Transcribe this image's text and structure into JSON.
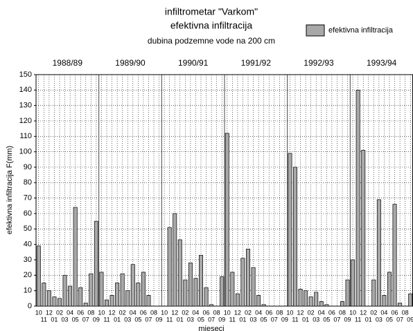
{
  "chart_data": {
    "type": "bar",
    "title": "infiltrometar \"Varkom\"",
    "subtitle": "efektivna infiltracija",
    "note": "dubina podzemne vode na 200 cm",
    "ylabel": "efektivna infiltracija  F(mm)",
    "xlabel": "mjeseci",
    "year_labels": [
      "1988/89",
      "1989/90",
      "1990/91",
      "1991/92",
      "1992/93",
      "1993/94"
    ],
    "categories": [
      "10",
      "11",
      "12",
      "01",
      "02",
      "03",
      "04",
      "05",
      "06",
      "07",
      "08",
      "09",
      "10",
      "11",
      "12",
      "01",
      "02",
      "03",
      "04",
      "05",
      "06",
      "07",
      "08",
      "09",
      "10",
      "11",
      "12",
      "01",
      "02",
      "03",
      "04",
      "05",
      "06",
      "07",
      "08",
      "09",
      "10",
      "11",
      "12",
      "01",
      "02",
      "03",
      "04",
      "05",
      "06",
      "07",
      "08",
      "09",
      "10",
      "11",
      "12",
      "01",
      "02",
      "03",
      "04",
      "05",
      "06",
      "07",
      "08",
      "09",
      "10",
      "11",
      "12",
      "01",
      "02",
      "03",
      "04",
      "05",
      "06",
      "07",
      "08",
      "09"
    ],
    "series": [
      {
        "name": "efektivna infiltracija",
        "color": "#a8a8a8",
        "values": [
          39,
          15,
          10,
          6,
          5,
          20,
          13,
          64,
          12,
          2,
          21,
          55,
          22,
          4,
          7,
          15,
          21,
          10,
          27,
          15,
          22,
          7,
          0,
          0,
          0,
          51,
          60,
          43,
          17,
          28,
          18,
          33,
          12,
          1,
          0,
          19,
          112,
          22,
          8,
          31,
          37,
          25,
          7,
          1,
          0,
          0,
          0,
          0,
          99,
          90,
          11,
          10,
          6,
          9,
          3,
          1,
          0,
          0,
          3,
          17,
          30,
          140,
          101,
          0,
          17,
          69,
          7,
          22,
          66,
          2,
          0,
          8
        ]
      }
    ],
    "ylim": [
      0,
      150
    ],
    "yticks": [
      0,
      10,
      20,
      30,
      40,
      50,
      60,
      70,
      80,
      90,
      100,
      110,
      120,
      130,
      140,
      150
    ],
    "grid": true,
    "legend": "upper right"
  }
}
